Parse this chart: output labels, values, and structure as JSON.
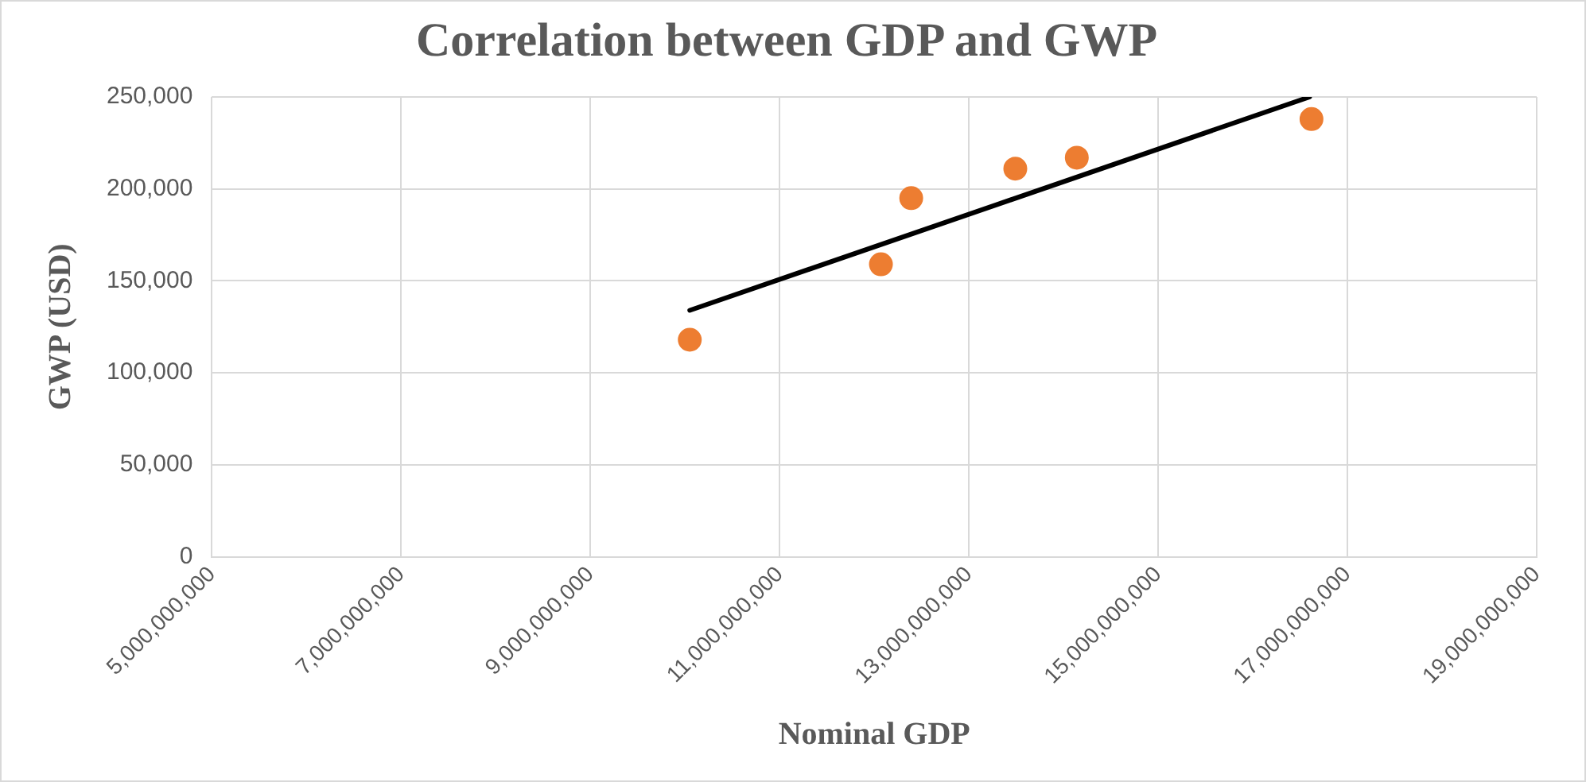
{
  "chart_data": {
    "type": "scatter",
    "title": "Correlation between GDP and GWP",
    "xlabel": "Nominal GDP",
    "ylabel": "GWP (USD)",
    "series": [
      {
        "color": "#ed7d31",
        "marker": "circle",
        "x": [
          10050000000,
          12070000000,
          12390000000,
          13490000000,
          14140000000,
          16620000000
        ],
        "values": [
          118000,
          159000,
          195000,
          211000,
          217000,
          238000
        ]
      },
      {
        "type": "line",
        "color": "#000000",
        "marker": "none",
        "x": [
          10050000000,
          16600000000
        ],
        "values": [
          134000,
          250000
        ]
      }
    ],
    "xlim": [
      5000000000,
      19000000000
    ],
    "xticks": [
      {
        "value": 5000000000,
        "label": "5,000,000,000"
      },
      {
        "value": 7000000000,
        "label": "7,000,000,000"
      },
      {
        "value": 9000000000,
        "label": "9,000,000,000"
      },
      {
        "value": 11000000000,
        "label": "11,000,000,000"
      },
      {
        "value": 13000000000,
        "label": "13,000,000,000"
      },
      {
        "value": 15000000000,
        "label": "15,000,000,000"
      },
      {
        "value": 17000000000,
        "label": "17,000,000,000"
      },
      {
        "value": 19000000000,
        "label": "19,000,000,000"
      }
    ],
    "ylim": [
      0,
      250000
    ],
    "yticks": [
      0,
      {
        "value": 50000,
        "label": "50,000"
      },
      {
        "value": 100000,
        "label": "100,000"
      },
      {
        "value": 150000,
        "label": "150,000"
      },
      {
        "value": 200000,
        "label": "200,000"
      },
      {
        "value": 250000,
        "label": "250,000"
      }
    ],
    "grid": true
  }
}
